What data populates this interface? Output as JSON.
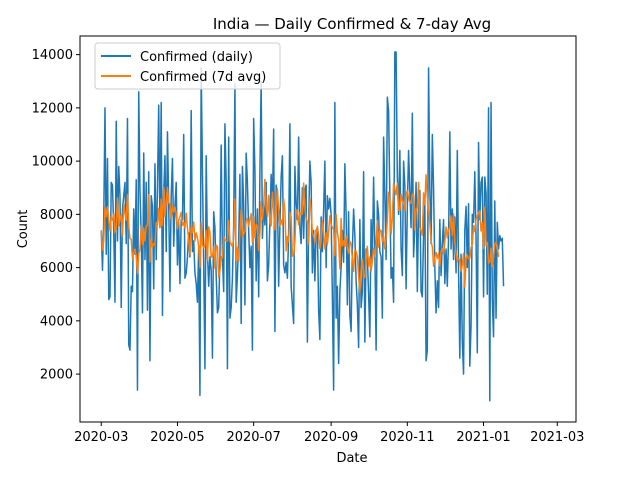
{
  "chart_data": {
    "type": "line",
    "title": "India — Daily Confirmed & 7-day Avg",
    "xlabel": "Date",
    "ylabel": "Count",
    "x_range": [
      "2020-03-01",
      "2021-02-28"
    ],
    "xlim": [
      "2020-02-13",
      "2021-03-16"
    ],
    "ylim": [
      200,
      14700
    ],
    "x_ticks": [
      "2020-03",
      "2020-05",
      "2020-07",
      "2020-09",
      "2020-11",
      "2021-01",
      "2021-03"
    ],
    "y_ticks": [
      2000,
      4000,
      6000,
      8000,
      10000,
      12000,
      14000
    ],
    "legend_position": "upper-left",
    "series": [
      {
        "name": "Confirmed (daily)",
        "color": "#1f77b4",
        "values": [
          7400,
          5900,
          7800,
          12000,
          6500,
          10100,
          4800,
          4900,
          9200,
          9100,
          7400,
          4700,
          11500,
          7000,
          9800,
          8700,
          4500,
          8200,
          8700,
          9200,
          6900,
          11600,
          3100,
          2900,
          5300,
          5100,
          8200,
          6500,
          9300,
          1400,
          12600,
          8900,
          7200,
          4300,
          10300,
          6300,
          9200,
          4400,
          9600,
          2500,
          8700,
          8300,
          5200,
          9900,
          6300,
          9000,
          12100,
          7500,
          12200,
          4200,
          8800,
          10200,
          6600,
          11100,
          8400,
          5100,
          8700,
          10100,
          6800,
          8300,
          9200,
          6100,
          7700,
          5400,
          7800,
          7800,
          11000,
          5600,
          5800,
          6400,
          7300,
          6400,
          11900,
          6600,
          7000,
          5800,
          5400,
          4700,
          6800,
          1200,
          13500,
          9600,
          6100,
          2200,
          10200,
          6600,
          5300,
          6400,
          5900,
          2600,
          8100,
          7500,
          5700,
          4300,
          4500,
          6300,
          10600,
          6400,
          5100,
          11400,
          9200,
          2200,
          10900,
          4100,
          4500,
          5600,
          7600,
          12900,
          4700,
          5700,
          7000,
          9500,
          3900,
          9800,
          8400,
          4600,
          10300,
          9200,
          7400,
          6000,
          6800,
          2900,
          11600,
          9700,
          5500,
          8200,
          4900,
          9600,
          13000,
          7100,
          8400,
          7600,
          9200,
          5500,
          6100,
          7700,
          9500,
          8300,
          11200,
          3600,
          9100,
          8800,
          5300,
          7600,
          9400,
          10200,
          6100,
          5800,
          6200,
          5600,
          7200,
          11400,
          5300,
          4600,
          3900,
          9800,
          8400,
          7800,
          10900,
          7500,
          6900,
          9000,
          7100,
          8900,
          9100,
          3200,
          7600,
          10000,
          9200,
          5800,
          7400,
          5500,
          7400,
          7500,
          4400,
          3300,
          7900,
          6600,
          8200,
          10000,
          6000,
          8700,
          8200,
          8600,
          8000,
          4900,
          1400,
          12200,
          4100,
          5300,
          2400,
          5100,
          6000,
          7400,
          6200,
          9900,
          8000,
          4600,
          8100,
          4200,
          3600,
          6700,
          8200,
          7200,
          5500,
          4600,
          3000,
          7800,
          4500,
          5100,
          9600,
          3200,
          6700,
          6400,
          5000,
          3400,
          7800,
          6300,
          9400,
          6700,
          2900,
          8500,
          8000,
          6600,
          6400,
          4100,
          10900,
          8700,
          6300,
          12400,
          11900,
          8700,
          5600,
          6000,
          4700,
          14100,
          14100,
          9400,
          8000,
          10400,
          6700,
          5700,
          10000,
          9100,
          5200,
          8300,
          10400,
          8900,
          7500,
          11800,
          6400,
          7500,
          9200,
          5100,
          8300,
          8900,
          5100,
          4900,
          7300,
          8500,
          2500,
          2900,
          13500,
          9000,
          6900,
          11000,
          9000,
          6000,
          4300,
          5500,
          4500,
          7800,
          5700,
          6900,
          7800,
          5400,
          6700,
          5300,
          7100,
          11100,
          6700,
          8200,
          6300,
          7900,
          5800,
          10400,
          5900,
          2600,
          6500,
          3200,
          2000,
          7400,
          8300,
          6000,
          8400,
          2300,
          3800,
          8000,
          7700,
          9600,
          7100,
          2800,
          10700,
          7800,
          9200,
          9400,
          4900,
          9400,
          8800,
          5000,
          12000,
          1000,
          12200,
          4800,
          3400,
          8500,
          4100,
          7700,
          6700,
          7200,
          7000,
          7100,
          5300
        ]
      },
      {
        "name": "Confirmed (7d avg)",
        "color": "#ff7f0e",
        "values": [
          7400,
          6650,
          7033,
          8275,
          7920,
          8283,
          7786,
          7386,
          7886,
          7786,
          8029,
          7314,
          7543,
          8614,
          7571,
          7800,
          8000,
          7214,
          8371,
          8029,
          7771,
          8743,
          7557,
          7100,
          7057,
          6343,
          6557,
          6686,
          6414,
          5771,
          6543,
          6671,
          7571,
          6871,
          7486,
          7000,
          7571,
          7586,
          8743,
          6214,
          7071,
          6771,
          6900,
          6843,
          7700,
          7600,
          8229,
          7514,
          8571,
          7586,
          9014,
          7929,
          8500,
          9014,
          8429,
          8400,
          7843,
          8314,
          8086,
          8243,
          8029,
          7457,
          7786,
          7914,
          8071,
          7586,
          7686,
          7486,
          8043,
          7486,
          7057,
          6486,
          7543,
          7314,
          7714,
          7000,
          7300,
          7129,
          6786,
          6000,
          7686,
          6843,
          6743,
          6829,
          7400,
          6271,
          7529,
          7314,
          6386,
          6443,
          6771,
          5971,
          6843,
          6786,
          5629,
          5886,
          6414,
          6357,
          7157,
          7043,
          7000,
          7014,
          7771,
          6971,
          6886,
          6786,
          7100,
          8571,
          6271,
          6757,
          6243,
          7329,
          8186,
          7186,
          7271,
          7357,
          7757,
          7843,
          7557,
          7814,
          8029,
          6943,
          7914,
          7114,
          7629,
          7543,
          6643,
          7286,
          8471,
          7800,
          8329,
          9314,
          8286,
          7929,
          8714,
          7700,
          7571,
          8829,
          8171,
          7414,
          8214,
          8957,
          8129,
          7571,
          7786,
          7614,
          8571,
          8129,
          6629,
          7171,
          6971,
          8071,
          7900,
          6429,
          6486,
          6986,
          8157,
          8157,
          7614,
          8071,
          7986,
          8029,
          9171,
          8257,
          7800,
          7757,
          6886,
          8557,
          8186,
          7286,
          7186,
          6943,
          7257,
          7557,
          7229,
          6714,
          7014,
          7757,
          7314,
          6700,
          7300,
          6857,
          7357,
          7943,
          7614,
          7514,
          7443,
          6443,
          8000,
          7314,
          7029,
          5957,
          7843,
          6814,
          7000,
          6800,
          7186,
          6714,
          6543,
          6986,
          6886,
          6343,
          5857,
          6643,
          6614,
          6414,
          5700,
          5057,
          5900,
          6314,
          5629,
          5629,
          6286,
          6800,
          6043,
          6400,
          5871,
          6243,
          6729,
          6429,
          6871,
          7771,
          6771,
          7414,
          7400,
          6971,
          7157,
          6700,
          7114,
          7786,
          8829,
          8457,
          7257,
          7871,
          9157,
          8943,
          8729,
          9171,
          8157,
          8157,
          8757,
          8500,
          8443,
          8157,
          8771,
          8886,
          8614,
          8457,
          8414,
          8757,
          8743,
          7414,
          8229,
          8229,
          9200,
          7500,
          7386,
          7214,
          8800,
          8357,
          9486,
          8671,
          8114,
          7686,
          6986,
          6771,
          6057,
          6371,
          6571,
          6343,
          6514,
          6057,
          6600,
          6714,
          6514,
          6986,
          7529,
          7114,
          7457,
          7457,
          7943,
          7200,
          8014,
          6957,
          6543,
          6229,
          6343,
          6286,
          5871,
          6086,
          6529,
          5271,
          6329,
          6471,
          6329,
          6343,
          6743,
          6886,
          7571,
          7357,
          7829,
          7943,
          8057,
          8129,
          7371,
          7686,
          6714,
          8271,
          6829,
          6943,
          6171,
          6200,
          6729,
          6043,
          6386,
          6871,
          6957,
          6800,
          6400
        ]
      }
    ]
  }
}
